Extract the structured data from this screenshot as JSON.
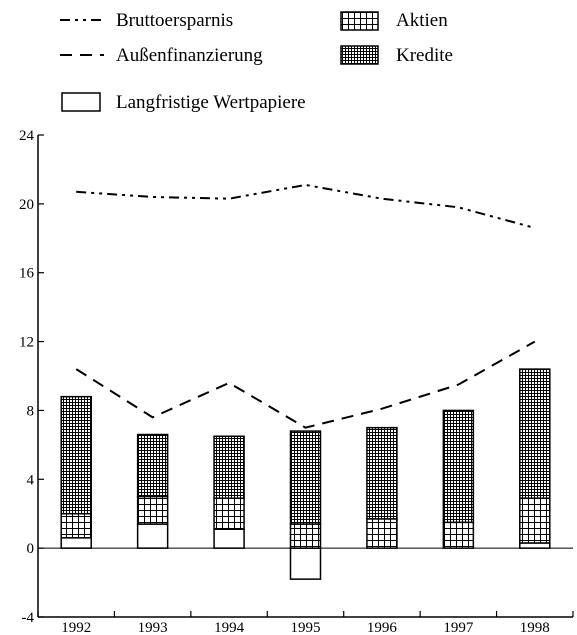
{
  "chart_data": {
    "type": "bar",
    "title": "",
    "xlabel": "",
    "ylabel": "",
    "categories": [
      "1992",
      "1993",
      "1994",
      "1995",
      "1996",
      "1997",
      "1998"
    ],
    "ylim": [
      -4,
      24
    ],
    "yticks": [
      "-4",
      "0",
      "4",
      "8",
      "12",
      "16",
      "20",
      "24"
    ],
    "grid": false,
    "stacked": true,
    "bar_series": [
      {
        "name": "Langfristige Wertpapiere",
        "values": [
          0.6,
          1.4,
          1.1,
          -1.8,
          0.0,
          0.0,
          0.3
        ],
        "pattern": "none"
      },
      {
        "name": "Aktien",
        "values": [
          1.4,
          1.6,
          1.8,
          1.4,
          1.7,
          1.5,
          2.6
        ],
        "pattern": "grid"
      },
      {
        "name": "Kredite",
        "values": [
          6.8,
          3.6,
          3.6,
          5.4,
          5.3,
          6.5,
          7.5
        ],
        "pattern": "dense-grid"
      }
    ],
    "line_series": [
      {
        "name": "Bruttoersparnis",
        "values": [
          20.7,
          20.4,
          20.3,
          21.1,
          20.3,
          19.8,
          18.6
        ],
        "dash": "dash-dot-dot"
      },
      {
        "name": "Außenfinanzierung",
        "values": [
          10.4,
          7.6,
          9.6,
          7.0,
          8.1,
          9.5,
          12.0
        ],
        "dash": "dash"
      }
    ],
    "legend": {
      "placement": "top",
      "items": [
        "Bruttoersparnis",
        "Außenfinanzierung",
        "Langfristige Wertpapiere",
        "Aktien",
        "Kredite"
      ]
    }
  }
}
